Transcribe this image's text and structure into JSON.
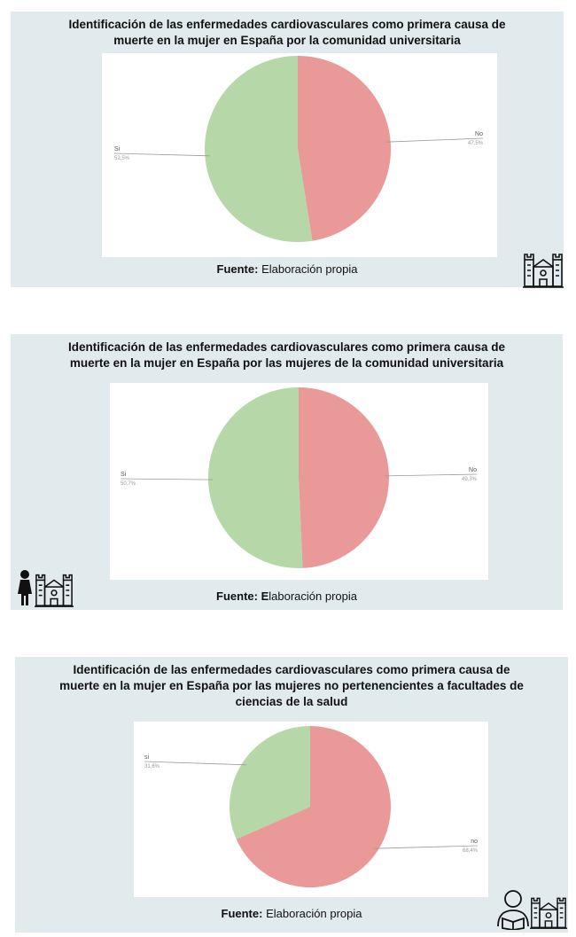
{
  "panels": [
    {
      "title": "Identificación de las enfermedades cardiovasculares como primera causa de\nmuerte en la mujer en España por la comunidad universitaria",
      "source_label": "Fuente:",
      "source_text": "Elaboración propia",
      "icons": [
        "building-icon"
      ]
    },
    {
      "title": "Identificación de las enfermedades cardiovasculares como primera causa de\nmuerte en la mujer en España por las mujeres de la comunidad universitaria",
      "source_label": "Fuente: E",
      "source_text": "laboración propia",
      "icons": [
        "woman-icon",
        "building-icon"
      ]
    },
    {
      "title": "Identificación de las enfermedades cardiovasculares como primera causa de\nmuerte en la mujer en España por las mujeres no pertenencientes a facultades de\nciencias de la salud",
      "source_label": "Fuente:",
      "source_text": "Elaboración propia",
      "icons": [
        "student-reading-icon",
        "building-icon"
      ]
    }
  ],
  "colors": {
    "si": "#b6d7a8",
    "no": "#ea9999",
    "panel": "#e1ebee"
  },
  "chart_data": [
    {
      "type": "pie",
      "slices": [
        {
          "label": "No",
          "value_text": "47,5%",
          "value": 47.5
        },
        {
          "label": "Si",
          "value_text": "52,5%",
          "value": 52.5
        }
      ]
    },
    {
      "type": "pie",
      "slices": [
        {
          "label": "No",
          "value_text": "49,3%",
          "value": 49.3
        },
        {
          "label": "Si",
          "value_text": "50,7%",
          "value": 50.7
        }
      ]
    },
    {
      "type": "pie",
      "slices": [
        {
          "label": "no",
          "value_text": "68,4%",
          "value": 68.4
        },
        {
          "label": "si",
          "value_text": "31,6%",
          "value": 31.6
        }
      ]
    }
  ]
}
